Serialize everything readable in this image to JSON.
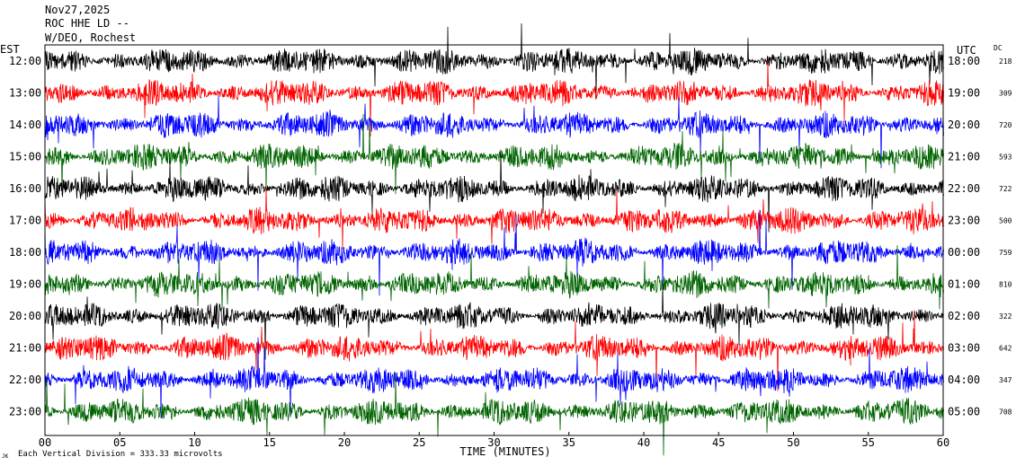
{
  "header": {
    "date": "Nov27,2025",
    "station": "ROC HHE LD --",
    "location": "W/DEO, Rochest"
  },
  "labels": {
    "left_tz": "EST",
    "right_tz": "UTC",
    "dc": "DC",
    "time_axis": "TIME (MINUTES)",
    "footer": "Each Vertical Division =  333.33 microvolts",
    "footer_mark": "JK"
  },
  "colors": {
    "trace_cycle": [
      "#000000",
      "#ff0000",
      "#0000ff",
      "#006400"
    ],
    "frame": "#000000",
    "background": "#ffffff"
  },
  "chart_data": {
    "type": "line",
    "title": "",
    "xlabel": "TIME (MINUTES)",
    "ylabel": "",
    "xlim": [
      0,
      60
    ],
    "x_ticks": [
      "00",
      "05",
      "10",
      "15",
      "20",
      "25",
      "30",
      "35",
      "40",
      "45",
      "50",
      "55",
      "60"
    ],
    "grid": false,
    "series": [
      {
        "left": "12:00",
        "right": "18:00",
        "dc": "218"
      },
      {
        "left": "13:00",
        "right": "19:00",
        "dc": "309"
      },
      {
        "left": "14:00",
        "right": "20:00",
        "dc": "720"
      },
      {
        "left": "15:00",
        "right": "21:00",
        "dc": "593"
      },
      {
        "left": "16:00",
        "right": "22:00",
        "dc": "722"
      },
      {
        "left": "17:00",
        "right": "23:00",
        "dc": "500"
      },
      {
        "left": "18:00",
        "right": "00:00",
        "dc": "759"
      },
      {
        "left": "19:00",
        "right": "01:00",
        "dc": "810"
      },
      {
        "left": "20:00",
        "right": "02:00",
        "dc": "322"
      },
      {
        "left": "21:00",
        "right": "03:00",
        "dc": "642"
      },
      {
        "left": "22:00",
        "right": "04:00",
        "dc": "347"
      },
      {
        "left": "23:00",
        "right": "05:00",
        "dc": "708"
      }
    ]
  }
}
